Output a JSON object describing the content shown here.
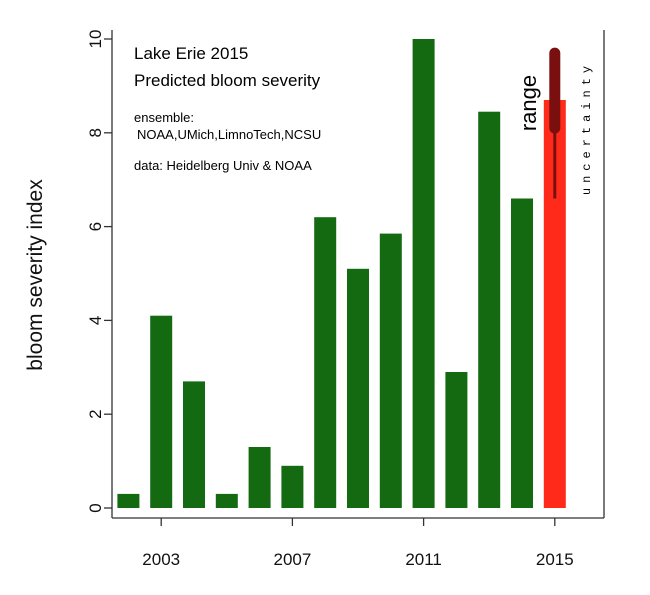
{
  "chart_data": {
    "type": "bar",
    "title": "Lake Erie 2015",
    "subtitle": "Predicted bloom severity",
    "ylabel": "bloom severity index",
    "xlabel": "",
    "xlim": [
      2001.5,
      2016.5
    ],
    "ylim": [
      0,
      10
    ],
    "x_ticks": [
      "2003",
      "2007",
      "2011",
      "2015"
    ],
    "y_ticks": [
      "0",
      "2",
      "4",
      "6",
      "8",
      "10"
    ],
    "grid": false,
    "categories": [
      "2002",
      "2003",
      "2004",
      "2005",
      "2006",
      "2007",
      "2008",
      "2009",
      "2010",
      "2011",
      "2012",
      "2013",
      "2014",
      "2015"
    ],
    "series": [
      {
        "values": [
          0.3,
          4.1,
          2.7,
          0.3,
          1.3,
          0.9,
          6.2,
          5.1,
          5.85,
          10.0,
          2.9,
          8.45,
          6.6,
          null
        ],
        "color": "#136a10"
      },
      {
        "values": [
          null,
          null,
          null,
          null,
          null,
          null,
          null,
          null,
          null,
          null,
          null,
          null,
          null,
          8.7
        ],
        "color": "#ff2a1a"
      }
    ],
    "range_2015": {
      "low": 6.6,
      "high": 9.8,
      "color": "#7a0f0f",
      "inner_low": 8.1,
      "inner_high": 9.7
    },
    "annotations": {
      "ensemble_label": "ensemble:",
      "ensemble_members": "NOAA,UMich,LimnoTech,NCSU",
      "data_source": "data: Heidelberg Univ & NOAA",
      "range_label": "range",
      "uncertainty_label": "uncertainty"
    }
  }
}
